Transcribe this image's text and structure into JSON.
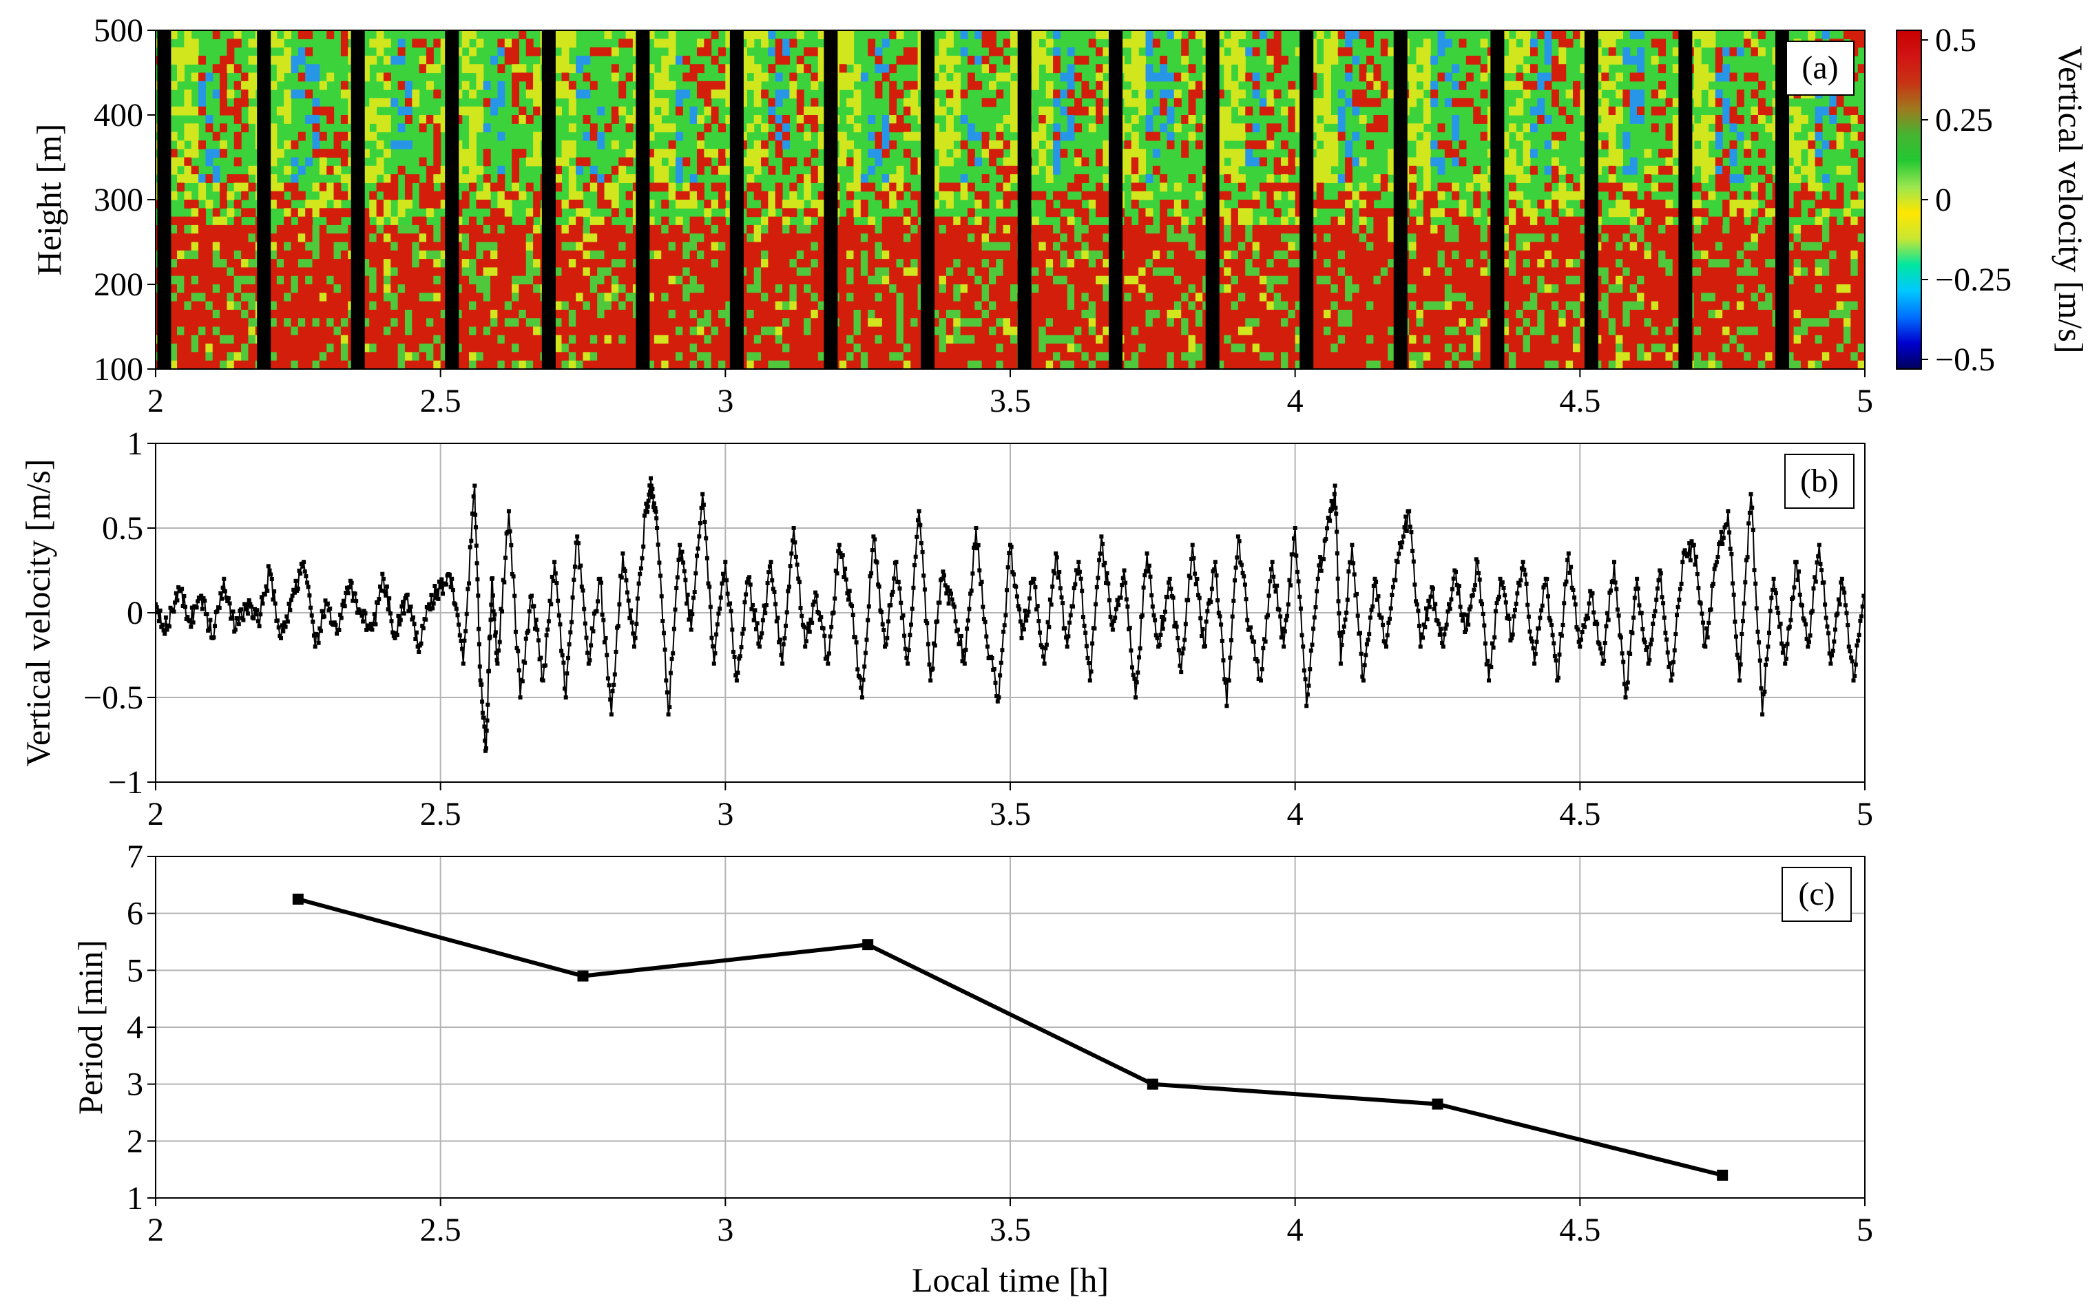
{
  "chart_data": [
    {
      "panel": "a",
      "type": "heatmap",
      "label": "(a)",
      "xlim": [
        2,
        5
      ],
      "ylim": [
        100,
        500
      ],
      "ylabel": "Height [m]",
      "xticks": [
        "2",
        "2.5",
        "3",
        "3.5",
        "4",
        "4.5",
        "5"
      ],
      "yticks": [
        "100",
        "200",
        "300",
        "400",
        "500"
      ],
      "colorbar": {
        "label": "Vertical velocity [m/s]",
        "range": [
          -0.5,
          0.5
        ],
        "ticks": [
          "0.5",
          "0.25",
          "0",
          "−0.25",
          "−0.5"
        ],
        "colors": [
          "#00005a",
          "#0000d0",
          "#0070ff",
          "#00c8ff",
          "#00e6a0",
          "#c8e632",
          "#ffe600",
          "#9be650",
          "#23c832",
          "#46b432",
          "#a0781e",
          "#c83214",
          "#d21414",
          "#c80000"
        ]
      },
      "gap_times": [
        2.015,
        2.19,
        2.355,
        2.52,
        2.69,
        2.855,
        3.02,
        3.185,
        3.355,
        3.525,
        3.685,
        3.855,
        4.02,
        4.185,
        4.355,
        4.52,
        4.685,
        4.855
      ],
      "dominant_colors": {
        "upper_green": "#3cd23c",
        "upper_yellow": "#d2e61e",
        "upper_blue": "#2896e6",
        "lower_red": "#d21e0a",
        "lower_green": "#50c83c",
        "gap": "#000000"
      }
    },
    {
      "panel": "b",
      "type": "line",
      "label": "(b)",
      "xlim": [
        2,
        5
      ],
      "ylim": [
        -1,
        1
      ],
      "ylabel": "Vertical velocity [m/s]",
      "xticks": [
        "2",
        "2.5",
        "3",
        "3.5",
        "4",
        "4.5",
        "5"
      ],
      "yticks": [
        "−1",
        "−0.5",
        "0",
        "0.5",
        "1"
      ],
      "series": [
        {
          "name": "vertical velocity",
          "marker": "square",
          "color": "#000000",
          "x": [
            2.0,
            2.02,
            2.04,
            2.06,
            2.08,
            2.1,
            2.12,
            2.14,
            2.16,
            2.18,
            2.2,
            2.22,
            2.24,
            2.26,
            2.28,
            2.3,
            2.32,
            2.34,
            2.36,
            2.38,
            2.4,
            2.42,
            2.44,
            2.46,
            2.48,
            2.5,
            2.52,
            2.54,
            2.56,
            2.57,
            2.58,
            2.59,
            2.6,
            2.62,
            2.64,
            2.66,
            2.68,
            2.7,
            2.72,
            2.74,
            2.76,
            2.78,
            2.8,
            2.82,
            2.84,
            2.86,
            2.87,
            2.88,
            2.9,
            2.92,
            2.94,
            2.96,
            2.98,
            3.0,
            3.02,
            3.04,
            3.06,
            3.08,
            3.1,
            3.12,
            3.14,
            3.16,
            3.18,
            3.2,
            3.22,
            3.24,
            3.26,
            3.28,
            3.3,
            3.32,
            3.34,
            3.36,
            3.38,
            3.4,
            3.42,
            3.44,
            3.46,
            3.48,
            3.5,
            3.52,
            3.54,
            3.56,
            3.58,
            3.6,
            3.62,
            3.64,
            3.66,
            3.68,
            3.7,
            3.72,
            3.74,
            3.76,
            3.78,
            3.8,
            3.82,
            3.84,
            3.86,
            3.88,
            3.9,
            3.92,
            3.94,
            3.96,
            3.98,
            4.0,
            4.02,
            4.04,
            4.06,
            4.07,
            4.08,
            4.1,
            4.12,
            4.14,
            4.16,
            4.18,
            4.2,
            4.22,
            4.24,
            4.26,
            4.28,
            4.3,
            4.32,
            4.34,
            4.36,
            4.38,
            4.4,
            4.42,
            4.44,
            4.46,
            4.48,
            4.5,
            4.52,
            4.54,
            4.56,
            4.58,
            4.6,
            4.62,
            4.64,
            4.66,
            4.68,
            4.7,
            4.72,
            4.74,
            4.76,
            4.78,
            4.8,
            4.82,
            4.84,
            4.86,
            4.88,
            4.9,
            4.92,
            4.94,
            4.96,
            4.98,
            5.0
          ],
          "y": [
            0.05,
            -0.1,
            0.15,
            -0.05,
            0.1,
            -0.15,
            0.2,
            -0.1,
            0.05,
            -0.05,
            0.25,
            -0.15,
            0.1,
            0.3,
            -0.2,
            0.05,
            -0.1,
            0.15,
            0.0,
            -0.1,
            0.2,
            -0.15,
            0.1,
            -0.2,
            0.05,
            0.15,
            0.2,
            -0.3,
            0.75,
            -0.4,
            -0.8,
            0.2,
            -0.3,
            0.6,
            -0.5,
            0.1,
            -0.4,
            0.3,
            -0.5,
            0.45,
            -0.3,
            0.2,
            -0.6,
            0.35,
            -0.2,
            0.6,
            0.75,
            0.5,
            -0.6,
            0.4,
            -0.1,
            0.7,
            -0.3,
            0.3,
            -0.4,
            0.2,
            -0.2,
            0.3,
            -0.3,
            0.5,
            -0.2,
            0.1,
            -0.3,
            0.4,
            0.05,
            -0.5,
            0.45,
            -0.2,
            0.3,
            -0.3,
            0.6,
            -0.4,
            0.2,
            0.05,
            -0.3,
            0.5,
            -0.2,
            -0.5,
            0.4,
            -0.15,
            0.2,
            -0.3,
            0.35,
            -0.2,
            0.3,
            -0.4,
            0.45,
            -0.1,
            0.25,
            -0.5,
            0.35,
            -0.2,
            0.2,
            -0.35,
            0.4,
            -0.2,
            0.3,
            -0.55,
            0.45,
            -0.1,
            -0.4,
            0.3,
            -0.2,
            0.5,
            -0.55,
            0.2,
            0.55,
            0.75,
            -0.3,
            0.4,
            -0.4,
            0.2,
            -0.2,
            0.3,
            0.6,
            -0.2,
            0.15,
            -0.2,
            0.25,
            -0.1,
            0.3,
            -0.4,
            0.2,
            -0.15,
            0.3,
            -0.3,
            0.2,
            -0.4,
            0.35,
            -0.2,
            0.1,
            -0.3,
            0.3,
            -0.5,
            0.2,
            -0.3,
            0.25,
            -0.4,
            0.3,
            0.4,
            -0.2,
            0.3,
            0.6,
            -0.4,
            0.7,
            -0.6,
            0.2,
            -0.3,
            0.3,
            -0.2,
            0.4,
            -0.3,
            0.2,
            -0.4,
            0.1
          ]
        }
      ]
    },
    {
      "panel": "c",
      "type": "line",
      "label": "(c)",
      "xlim": [
        2,
        5
      ],
      "ylim": [
        1,
        7
      ],
      "xlabel": "Local time [h]",
      "ylabel": "Period [min]",
      "xticks": [
        "2",
        "2.5",
        "3",
        "3.5",
        "4",
        "4.5",
        "5"
      ],
      "yticks": [
        "1",
        "2",
        "3",
        "4",
        "5",
        "6",
        "7"
      ],
      "series": [
        {
          "name": "period",
          "marker": "square",
          "color": "#000000",
          "x": [
            2.25,
            2.75,
            3.25,
            3.75,
            4.25,
            4.75
          ],
          "y": [
            6.25,
            4.9,
            5.45,
            3.0,
            2.65,
            1.4
          ]
        }
      ]
    }
  ]
}
